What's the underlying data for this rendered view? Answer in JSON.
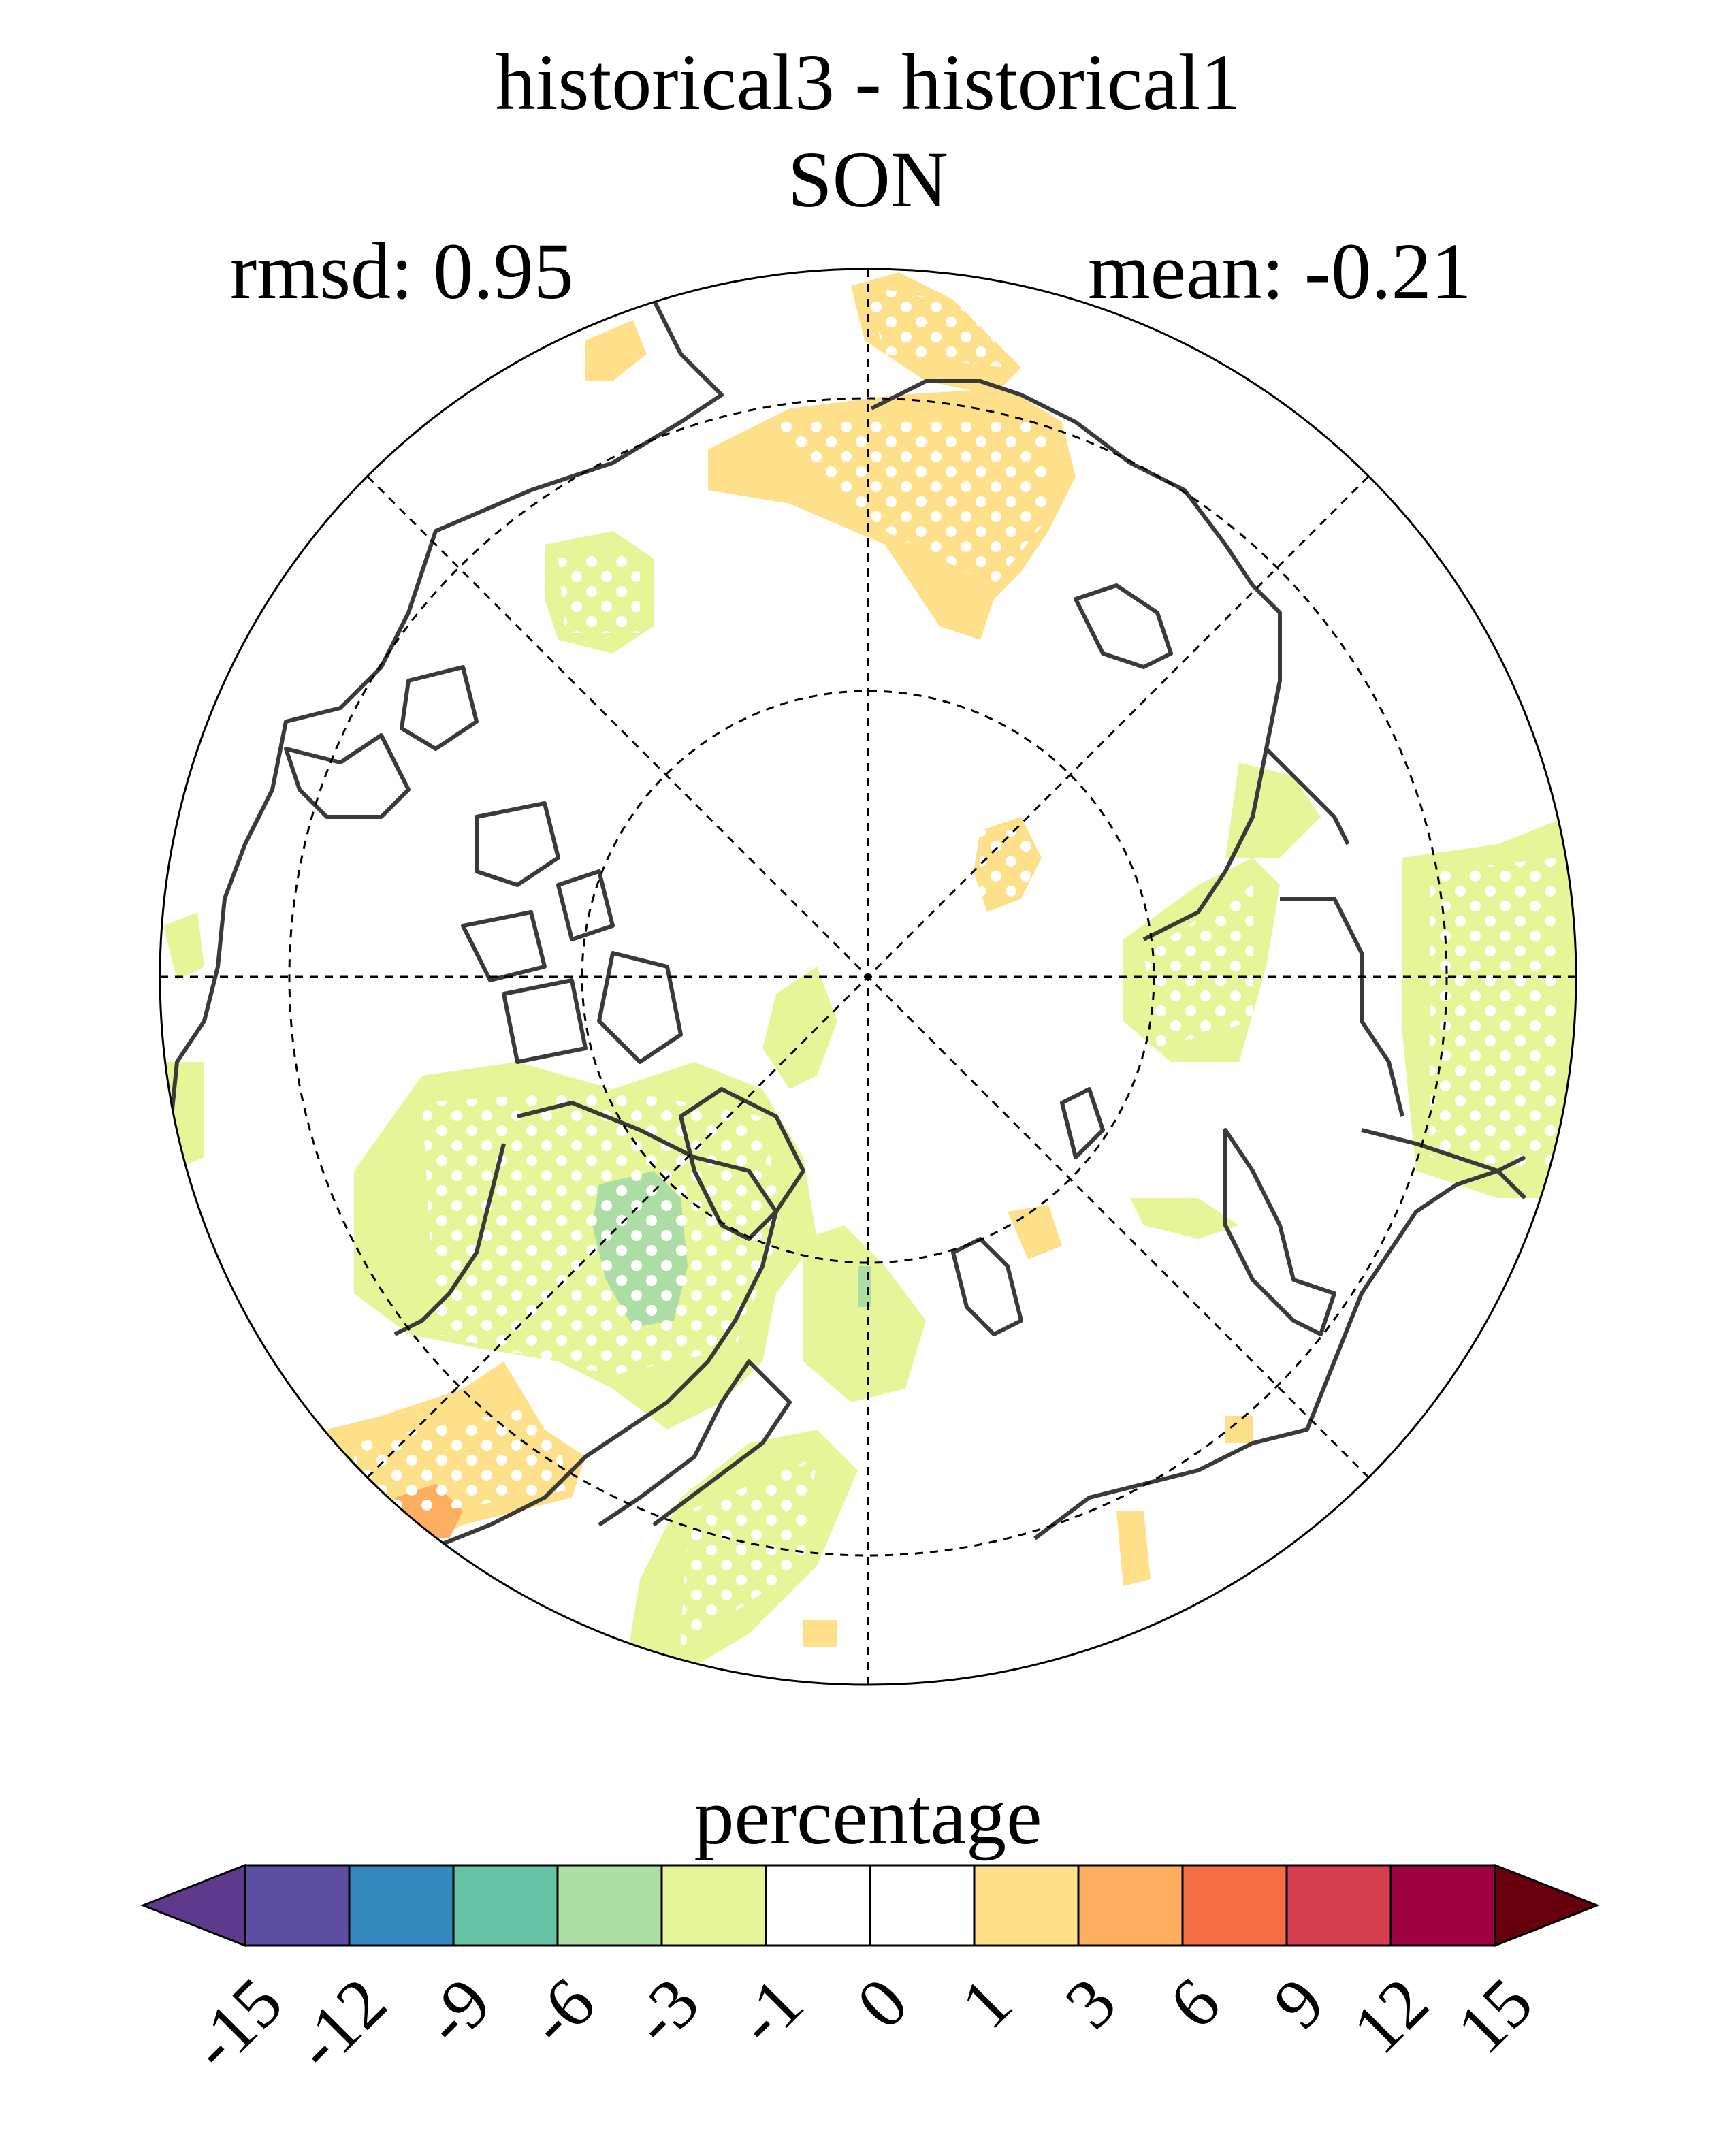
{
  "title_line1": "historical3 - historical1",
  "title_line2": "SON",
  "rmsd_label": "rmsd: 0.95",
  "mean_label": "mean: -0.21",
  "colorbar": {
    "title": "percentage",
    "levels": [
      "-15",
      "-12",
      "-9",
      "-6",
      "-3",
      "-1",
      "0",
      "1",
      "3",
      "6",
      "9",
      "12",
      "15"
    ],
    "colors": [
      "#5e3a8c",
      "#5c4fa2",
      "#3288bd",
      "#66c2a5",
      "#abdda4",
      "#e6f598",
      "#ffffff",
      "#ffffff",
      "#fee08b",
      "#fdae61",
      "#f46d43",
      "#d53e4f",
      "#9e0142",
      "#67000d"
    ]
  },
  "map": {
    "projection": "north-polar-stereographic",
    "coastline_color": "#3a3a3a",
    "grid_color": "#000000"
  }
}
